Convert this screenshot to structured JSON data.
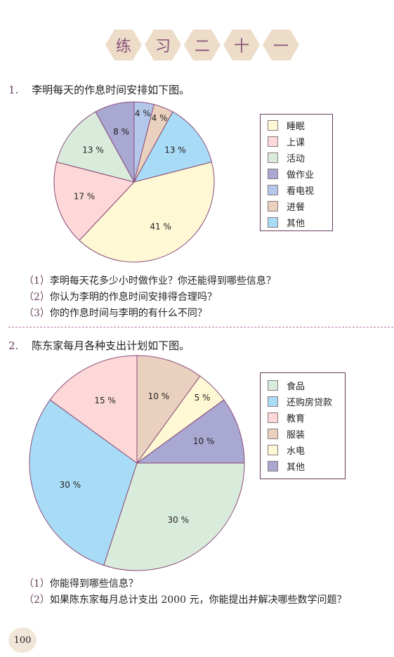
{
  "title_chars": [
    "练",
    "习",
    "二",
    "十",
    "一"
  ],
  "q1": {
    "number": "1.",
    "text": "李明每天的作息时间安排如下图。",
    "legend": [
      {
        "label": "睡眠",
        "color": "#fef9d4"
      },
      {
        "label": "上课",
        "color": "#fcd8d8"
      },
      {
        "label": "活动",
        "color": "#d9ecdc"
      },
      {
        "label": "做作业",
        "color": "#a8a8d2"
      },
      {
        "label": "看电视",
        "color": "#b3c8ea"
      },
      {
        "label": "进餐",
        "color": "#ead1bf"
      },
      {
        "label": "其他",
        "color": "#a8dcf6"
      }
    ],
    "sub_questions": [
      {
        "num": "（1）",
        "text": "李明每天花多少小时做作业？你还能得到哪些信息？"
      },
      {
        "num": "（2）",
        "text": "你认为李明的作息时间安排得合理吗？"
      },
      {
        "num": "（3）",
        "text": "你的作息时间与李明的有什么不同？"
      }
    ]
  },
  "q2": {
    "number": "2.",
    "text": "陈东家每月各种支出计划如下图。",
    "legend": [
      {
        "label": "食品",
        "color": "#d9ecdc"
      },
      {
        "label": "还购房贷款",
        "color": "#a8dcf6"
      },
      {
        "label": "教育",
        "color": "#fcd8d8"
      },
      {
        "label": "服装",
        "color": "#ead1bf"
      },
      {
        "label": "水电",
        "color": "#fef9d4"
      },
      {
        "label": "其他",
        "color": "#a8a8d2"
      }
    ],
    "sub_questions": [
      {
        "num": "（1）",
        "text": "你能得到哪些信息？"
      },
      {
        "num": "（2）",
        "text": "如果陈东家每月总计支出 2000 元，你能提出并解决哪些数学问题？"
      }
    ]
  },
  "page_number": "100",
  "chart_data": [
    {
      "type": "pie",
      "slices": [
        {
          "name": "看电视",
          "value": 4,
          "label": "4 %",
          "color": "#b3c8ea"
        },
        {
          "name": "进餐",
          "value": 4,
          "label": "4 %",
          "color": "#ead1bf"
        },
        {
          "name": "其他",
          "value": 13,
          "label": "13 %",
          "color": "#a8dcf6"
        },
        {
          "name": "睡眠",
          "value": 41,
          "label": "41 %",
          "color": "#fef9d4"
        },
        {
          "name": "上课",
          "value": 17,
          "label": "17 %",
          "color": "#fcd8d8"
        },
        {
          "name": "活动",
          "value": 13,
          "label": "13 %",
          "color": "#d9ecdc"
        },
        {
          "name": "做作业",
          "value": 8,
          "label": "8 %",
          "color": "#a8a8d2"
        }
      ]
    },
    {
      "type": "pie",
      "slices": [
        {
          "name": "服装",
          "value": 10,
          "label": "10 %",
          "color": "#ead1bf"
        },
        {
          "name": "水电",
          "value": 5,
          "label": "5 %",
          "color": "#fef9d4"
        },
        {
          "name": "其他",
          "value": 10,
          "label": "10 %",
          "color": "#a8a8d2"
        },
        {
          "name": "食品",
          "value": 30,
          "label": "30 %",
          "color": "#d9ecdc"
        },
        {
          "name": "还购房贷款",
          "value": 30,
          "label": "30 %",
          "color": "#a8dcf6"
        },
        {
          "name": "教育",
          "value": 15,
          "label": "15 %",
          "color": "#fcd8d8"
        }
      ]
    }
  ]
}
